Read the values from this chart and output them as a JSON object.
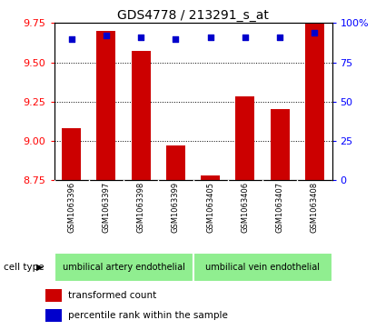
{
  "title": "GDS4778 / 213291_s_at",
  "samples": [
    "GSM1063396",
    "GSM1063397",
    "GSM1063398",
    "GSM1063399",
    "GSM1063405",
    "GSM1063406",
    "GSM1063407",
    "GSM1063408"
  ],
  "transformed_counts": [
    9.08,
    9.7,
    9.57,
    8.97,
    8.78,
    9.28,
    9.2,
    9.77
  ],
  "percentile_ranks": [
    90,
    92,
    91,
    90,
    91,
    91,
    91,
    94
  ],
  "ylim_left": [
    8.75,
    9.75
  ],
  "ylim_right": [
    0,
    100
  ],
  "yticks_left": [
    8.75,
    9.0,
    9.25,
    9.5,
    9.75
  ],
  "yticks_right": [
    0,
    25,
    50,
    75,
    100
  ],
  "bar_color": "#CC0000",
  "dot_color": "#0000CC",
  "bar_width": 0.55,
  "cell_types": [
    {
      "label": "umbilical artery endothelial",
      "color": "#90EE90"
    },
    {
      "label": "umbilical vein endothelial",
      "color": "#90EE90"
    }
  ],
  "cell_type_label": "cell type",
  "legend_bar_label": "transformed count",
  "legend_dot_label": "percentile rank within the sample",
  "background_color": "#ffffff",
  "plot_bg_color": "#ffffff",
  "grid_color": "#000000",
  "label_area_color": "#c8c8c8",
  "title_fontsize": 10,
  "tick_fontsize": 8,
  "sample_fontsize": 6,
  "legend_fontsize": 7.5
}
